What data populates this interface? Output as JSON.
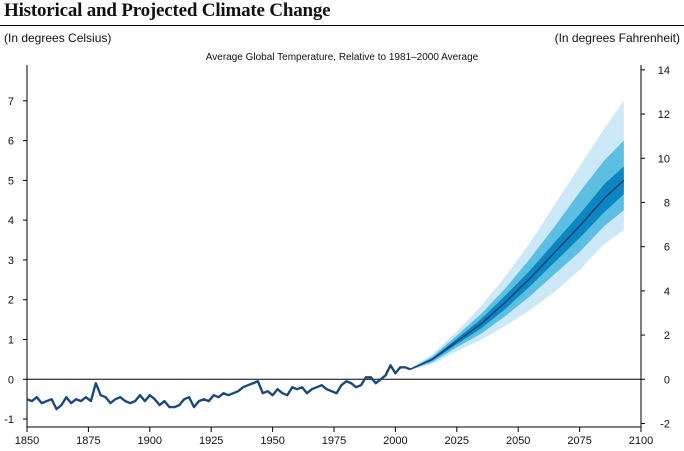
{
  "header": {
    "title": "Historical and Projected Climate Change",
    "unit_left": "(In degrees Celsius)",
    "unit_right": "(In degrees Fahrenheit)"
  },
  "chart_data": {
    "type": "area",
    "title": "Average Global Temperature, Relative to 1981–2000 Average",
    "xlabel": "",
    "ylabel": "",
    "xlim": [
      1850,
      2100
    ],
    "ylim": [
      -1.2,
      7.9
    ],
    "y2lim": [
      -2.16,
      14.22
    ],
    "x_ticks": [
      1850,
      1875,
      1900,
      1925,
      1950,
      1975,
      2000,
      2025,
      2050,
      2075,
      2100
    ],
    "y_ticks_left": [
      -1,
      0,
      1,
      2,
      3,
      4,
      5,
      6,
      7
    ],
    "y_ticks_right": [
      -2,
      0,
      2,
      4,
      6,
      8,
      10,
      12,
      14
    ],
    "grid": false,
    "legend": "none",
    "colors": {
      "historical_line": "#1b4a7a",
      "fan_outer": "#cde8f6",
      "fan_mid": "#5cbfe2",
      "fan_inner": "#0a86c0",
      "median": "#1d3f7a",
      "zero_line": "#000000"
    },
    "series": [
      {
        "type": "line",
        "x": [
          1850,
          1852,
          1854,
          1856,
          1858,
          1860,
          1862,
          1864,
          1866,
          1868,
          1870,
          1872,
          1874,
          1876,
          1878,
          1880,
          1882,
          1884,
          1886,
          1888,
          1890,
          1892,
          1894,
          1896,
          1898,
          1900,
          1902,
          1904,
          1906,
          1908,
          1910,
          1912,
          1914,
          1916,
          1918,
          1920,
          1922,
          1924,
          1926,
          1928,
          1930,
          1932,
          1934,
          1936,
          1938,
          1940,
          1942,
          1944,
          1946,
          1948,
          1950,
          1952,
          1954,
          1956,
          1958,
          1960,
          1962,
          1964,
          1966,
          1968,
          1970,
          1972,
          1974,
          1976,
          1978,
          1980,
          1982,
          1984,
          1986,
          1988,
          1990,
          1992,
          1994,
          1996,
          1998,
          2000,
          2002,
          2004,
          2006
        ],
        "values": [
          -0.5,
          -0.55,
          -0.45,
          -0.6,
          -0.55,
          -0.5,
          -0.75,
          -0.65,
          -0.45,
          -0.6,
          -0.5,
          -0.55,
          -0.45,
          -0.55,
          -0.1,
          -0.4,
          -0.45,
          -0.6,
          -0.5,
          -0.45,
          -0.55,
          -0.6,
          -0.55,
          -0.4,
          -0.55,
          -0.4,
          -0.5,
          -0.65,
          -0.55,
          -0.7,
          -0.7,
          -0.65,
          -0.5,
          -0.45,
          -0.7,
          -0.55,
          -0.5,
          -0.55,
          -0.4,
          -0.45,
          -0.35,
          -0.4,
          -0.35,
          -0.3,
          -0.2,
          -0.15,
          -0.1,
          -0.05,
          -0.35,
          -0.3,
          -0.4,
          -0.25,
          -0.35,
          -0.4,
          -0.2,
          -0.25,
          -0.2,
          -0.35,
          -0.25,
          -0.2,
          -0.15,
          -0.25,
          -0.3,
          -0.35,
          -0.15,
          -0.05,
          -0.1,
          -0.2,
          -0.15,
          0.05,
          0.05,
          -0.1,
          0.0,
          0.1,
          0.35,
          0.15,
          0.3,
          0.3,
          0.25
        ]
      },
      {
        "type": "fan",
        "x": [
          2006,
          2015,
          2025,
          2035,
          2045,
          2055,
          2065,
          2075,
          2085,
          2093
        ],
        "median": [
          0.25,
          0.5,
          0.95,
          1.4,
          1.95,
          2.55,
          3.2,
          3.85,
          4.55,
          5.0
        ],
        "bands": [
          {
            "lower": [
              0.23,
              0.38,
              0.7,
              1.0,
              1.35,
              1.75,
              2.2,
              2.75,
              3.4,
              3.75
            ],
            "upper": [
              0.27,
              0.63,
              1.2,
              1.85,
              2.6,
              3.45,
              4.4,
              5.35,
              6.3,
              7.0
            ]
          },
          {
            "lower": [
              0.24,
              0.43,
              0.8,
              1.15,
              1.6,
              2.1,
              2.65,
              3.2,
              3.85,
              4.25
            ],
            "upper": [
              0.26,
              0.57,
              1.1,
              1.65,
              2.3,
              3.05,
              3.85,
              4.7,
              5.5,
              6.0
            ]
          },
          {
            "lower": [
              0.245,
              0.47,
              0.88,
              1.28,
              1.78,
              2.35,
              2.95,
              3.55,
              4.2,
              4.65
            ],
            "upper": [
              0.255,
              0.53,
              1.02,
              1.52,
              2.12,
              2.75,
              3.45,
              4.15,
              4.9,
              5.35
            ]
          }
        ]
      }
    ]
  }
}
